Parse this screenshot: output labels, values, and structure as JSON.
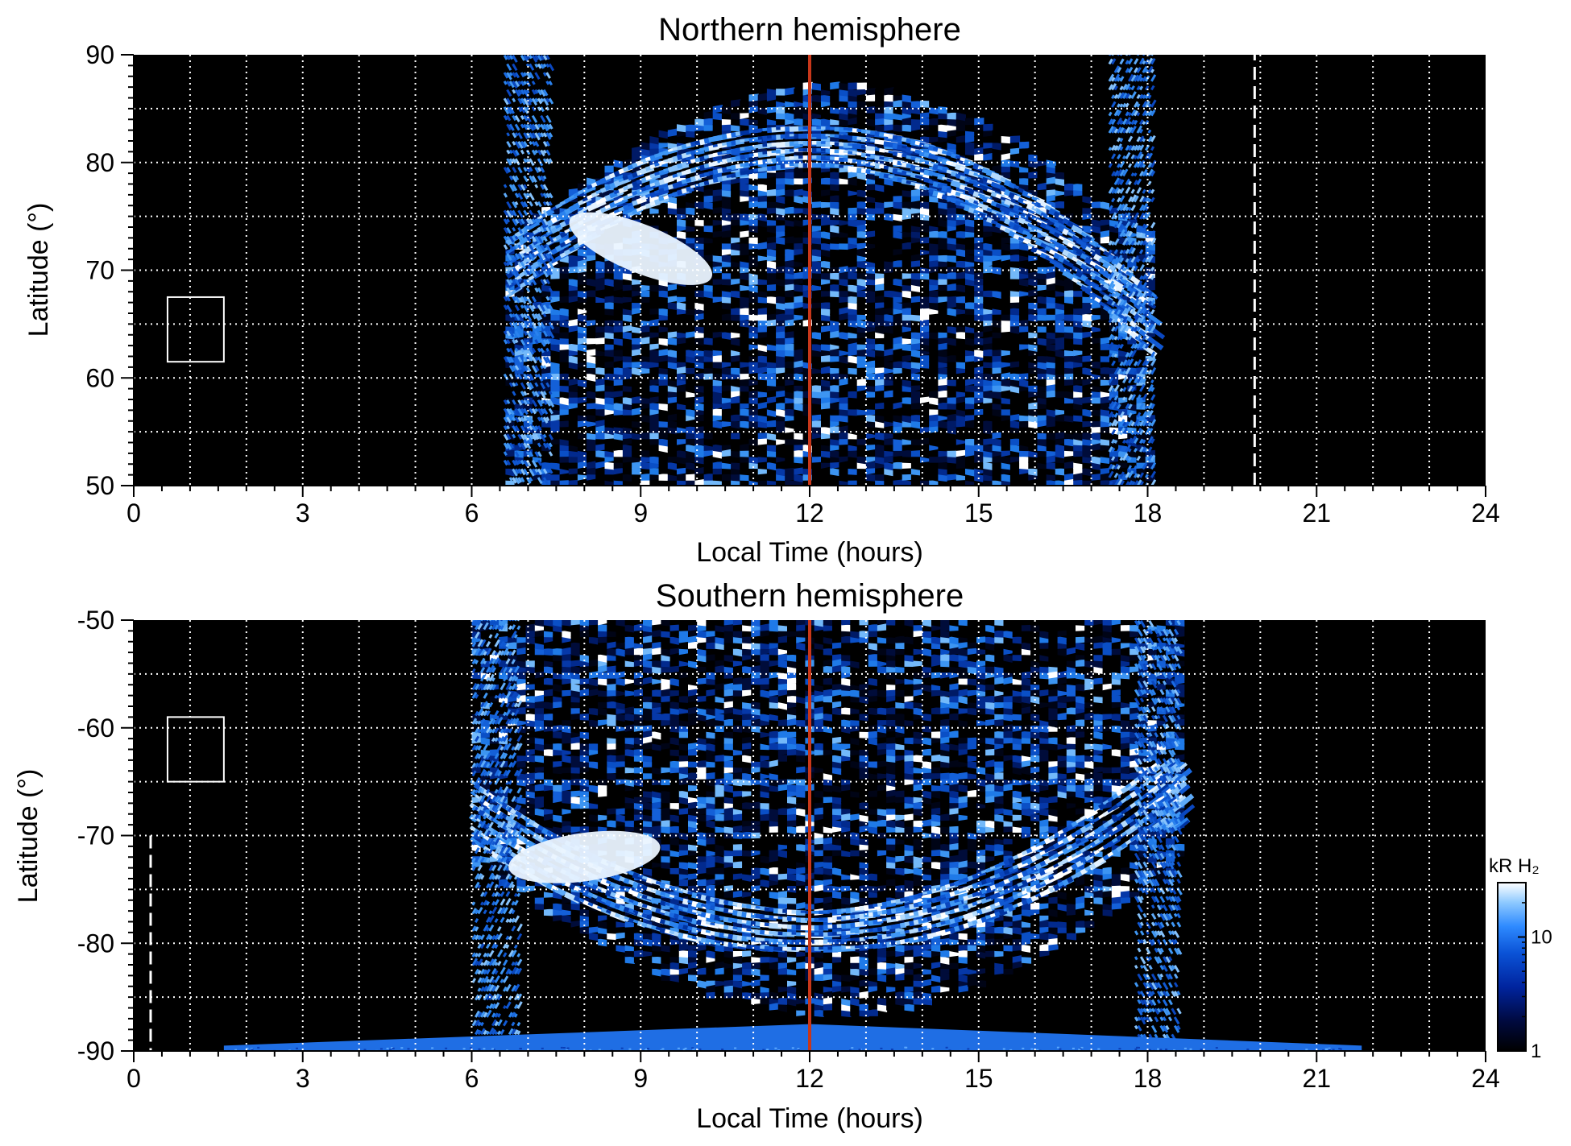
{
  "chart_data": [
    {
      "type": "heatmap",
      "title": "Northern hemisphere",
      "xlabel": "Local Time (hours)",
      "ylabel": "Latitude (°)",
      "xlim": [
        0,
        24
      ],
      "ylim": [
        50,
        90
      ],
      "x_ticks": [
        "0",
        "3",
        "6",
        "9",
        "12",
        "15",
        "18",
        "21",
        "24"
      ],
      "y_ticks": [
        "50",
        "60",
        "70",
        "80",
        "90"
      ],
      "grid": true,
      "data_coverage": {
        "lt_start": 6.6,
        "lt_end": 18.1
      },
      "auroral_oval": {
        "lat_at_noon": 82,
        "lat_at_dawn": 68,
        "lat_at_dusk": 66
      },
      "bright_spot": {
        "lt": 9,
        "lat": 72
      },
      "noon_line": {
        "lt": 12,
        "color": "#c8371a"
      },
      "dashed_line": {
        "lt": 19.9,
        "lat_from": 50,
        "lat_to": 90
      },
      "box": {
        "lt": [
          0.6,
          1.6
        ],
        "lat": [
          61.5,
          67.5
        ]
      }
    },
    {
      "type": "heatmap",
      "title": "Southern hemisphere",
      "xlabel": "Local Time (hours)",
      "ylabel": "Latitude (°)",
      "xlim": [
        0,
        24
      ],
      "ylim": [
        -90,
        -50
      ],
      "x_ticks": [
        "0",
        "3",
        "6",
        "9",
        "12",
        "15",
        "18",
        "21",
        "24"
      ],
      "y_ticks": [
        "-50",
        "-60",
        "-70",
        "-80",
        "-90"
      ],
      "grid": true,
      "data_coverage": {
        "lt_start": 6.0,
        "lt_end": 18.6
      },
      "auroral_oval": {
        "lat_at_noon": -79,
        "lat_at_dawn": -68,
        "lat_at_dusk": -67
      },
      "bright_spot": {
        "lt": 8,
        "lat": -72
      },
      "noon_line": {
        "lt": 12,
        "color": "#c8371a"
      },
      "dashed_line": {
        "lt": 0.3,
        "lat_from": -70,
        "lat_to": -90
      },
      "box": {
        "lt": [
          0.6,
          1.6
        ],
        "lat": [
          -65,
          -59
        ]
      },
      "colorbar": {
        "label": "kR H₂",
        "scale": "log",
        "range": [
          1,
          30
        ],
        "ticks": [
          "1",
          "10"
        ],
        "colors": [
          "#000000",
          "#000a40",
          "#00249e",
          "#0a52d6",
          "#2e8aff",
          "#8cc8ff",
          "#ffffff"
        ]
      }
    }
  ]
}
